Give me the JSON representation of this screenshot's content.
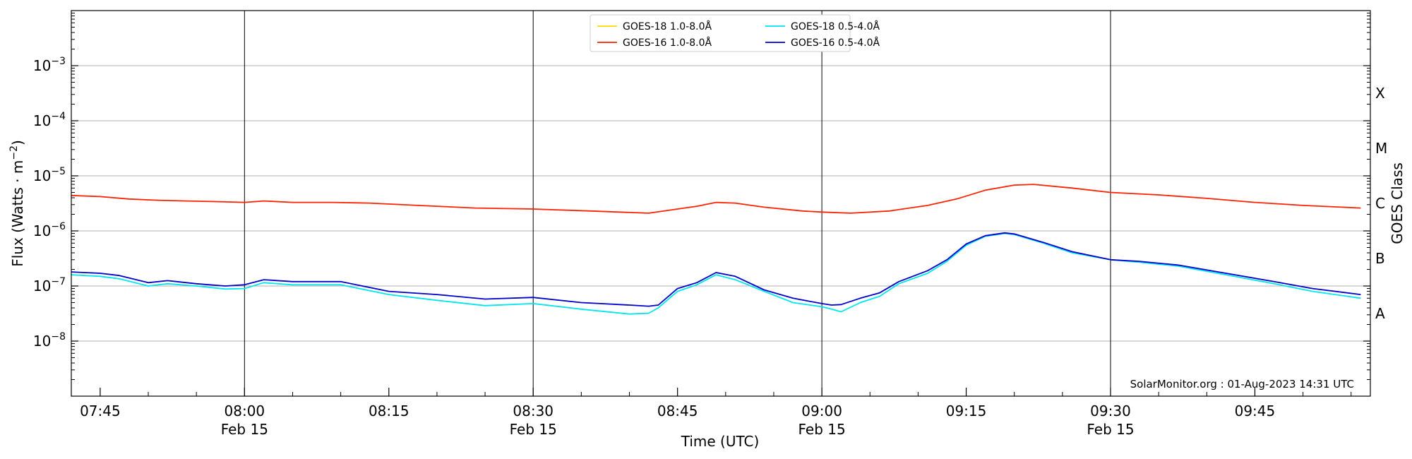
{
  "chart_data": {
    "type": "line",
    "x_unit": "minutes of 15 Feb (UTC)",
    "xlim": [
      "07:42",
      "09:57"
    ],
    "x_ticks": [
      {
        "t": "07:45",
        "label": "07:45",
        "date": ""
      },
      {
        "t": "08:00",
        "label": "08:00",
        "date": "Feb 15"
      },
      {
        "t": "08:15",
        "label": "08:15",
        "date": ""
      },
      {
        "t": "08:30",
        "label": "08:30",
        "date": "Feb 15"
      },
      {
        "t": "08:45",
        "label": "08:45",
        "date": ""
      },
      {
        "t": "09:00",
        "label": "09:00",
        "date": "Feb 15"
      },
      {
        "t": "09:15",
        "label": "09:15",
        "date": ""
      },
      {
        "t": "09:30",
        "label": "09:30",
        "date": "Feb 15"
      },
      {
        "t": "09:45",
        "label": "09:45",
        "date": ""
      }
    ],
    "xlabel": "Time (UTC)",
    "ylabel": "Flux (Watts · m",
    "ylabel_sup": "−2",
    "ylabel_close": ")",
    "y_scale": "log",
    "ylim": [
      1e-09,
      0.01
    ],
    "y_ticks": [
      {
        "value": 1e-08,
        "base": "10",
        "exp": "−8"
      },
      {
        "value": 1e-07,
        "base": "10",
        "exp": "−7"
      },
      {
        "value": 1e-06,
        "base": "10",
        "exp": "−6"
      },
      {
        "value": 1e-05,
        "base": "10",
        "exp": "−5"
      },
      {
        "value": 0.0001,
        "base": "10",
        "exp": "−4"
      },
      {
        "value": 0.001,
        "base": "10",
        "exp": "−3"
      }
    ],
    "right_axis_label": "GOES Class",
    "right_classes": [
      {
        "label": "A",
        "value": 3.16e-08
      },
      {
        "label": "B",
        "value": 3.16e-07
      },
      {
        "label": "C",
        "value": 3.16e-06
      },
      {
        "label": "M",
        "value": 3.16e-05
      },
      {
        "label": "X",
        "value": 0.000316
      }
    ],
    "grid": true,
    "vertical_lines": [
      "08:00",
      "08:30",
      "09:00",
      "09:30"
    ],
    "legend_position": "top-center",
    "credit": "SolarMonitor.org : 01-Aug-2023 14:31 UTC",
    "series": [
      {
        "name": "GOES-18 1.0-8.0Å",
        "color": "#ffd700",
        "x": [],
        "y": []
      },
      {
        "name": "GOES-16 1.0-8.0Å",
        "color": "#ff2200",
        "x": [
          "07:42",
          "07:45",
          "07:48",
          "07:51",
          "07:54",
          "07:57",
          "08:00",
          "08:02",
          "08:05",
          "08:09",
          "08:13",
          "08:18",
          "08:24",
          "08:30",
          "08:36",
          "08:42",
          "08:45",
          "08:47",
          "08:49",
          "08:51",
          "08:54",
          "08:58",
          "09:00",
          "09:03",
          "09:07",
          "09:11",
          "09:14",
          "09:17",
          "09:20",
          "09:22",
          "09:26",
          "09:30",
          "09:35",
          "09:40",
          "09:45",
          "09:50",
          "09:56"
        ],
        "y": [
          4.4e-06,
          4.2e-06,
          3.8e-06,
          3.6e-06,
          3.5e-06,
          3.4e-06,
          3.3e-06,
          3.5e-06,
          3.3e-06,
          3.3e-06,
          3.2e-06,
          2.9e-06,
          2.6e-06,
          2.5e-06,
          2.3e-06,
          2.1e-06,
          2.5e-06,
          2.8e-06,
          3.3e-06,
          3.2e-06,
          2.7e-06,
          2.3e-06,
          2.2e-06,
          2.1e-06,
          2.3e-06,
          2.9e-06,
          3.8e-06,
          5.5e-06,
          6.8e-06,
          7e-06,
          6e-06,
          5e-06,
          4.5e-06,
          3.9e-06,
          3.3e-06,
          2.9e-06,
          2.6e-06
        ]
      },
      {
        "name": "GOES-18 0.5-4.0Å",
        "color": "#00e5ee",
        "x": [
          "07:42",
          "07:45",
          "07:47",
          "07:50",
          "07:52",
          "07:55",
          "07:58",
          "08:00",
          "08:02",
          "08:05",
          "08:10",
          "08:15",
          "08:20",
          "08:25",
          "08:30",
          "08:35",
          "08:40",
          "08:42",
          "08:43",
          "08:45",
          "08:47",
          "08:49",
          "08:51",
          "08:54",
          "08:57",
          "09:00",
          "09:01",
          "09:02",
          "09:04",
          "09:06",
          "09:08",
          "09:11",
          "09:13",
          "09:15",
          "09:17",
          "09:19",
          "09:20",
          "09:23",
          "09:26",
          "09:30",
          "09:33",
          "09:37",
          "09:42",
          "09:47",
          "09:51",
          "09:56"
        ],
        "y": [
          1.6e-07,
          1.5e-07,
          1.35e-07,
          1e-07,
          1.1e-07,
          1e-07,
          8.8e-08,
          9e-08,
          1.15e-07,
          1.05e-07,
          1.05e-07,
          7e-08,
          5.5e-08,
          4.4e-08,
          4.8e-08,
          3.8e-08,
          3.1e-08,
          3.2e-08,
          4e-08,
          8e-08,
          1.05e-07,
          1.6e-07,
          1.3e-07,
          8e-08,
          5e-08,
          4.2e-08,
          3.8e-08,
          3.4e-08,
          5e-08,
          6.5e-08,
          1.1e-07,
          1.7e-07,
          2.8e-07,
          5.5e-07,
          8e-07,
          9e-07,
          8.6e-07,
          6e-07,
          4e-07,
          3e-07,
          2.7e-07,
          2.3e-07,
          1.6e-07,
          1.1e-07,
          8e-08,
          6e-08
        ]
      },
      {
        "name": "GOES-16 0.5-4.0Å",
        "color": "#0000cc",
        "x": [
          "07:42",
          "07:45",
          "07:47",
          "07:50",
          "07:52",
          "07:55",
          "07:58",
          "08:00",
          "08:02",
          "08:05",
          "08:10",
          "08:15",
          "08:20",
          "08:25",
          "08:30",
          "08:35",
          "08:40",
          "08:42",
          "08:43",
          "08:45",
          "08:47",
          "08:49",
          "08:51",
          "08:54",
          "08:57",
          "09:00",
          "09:01",
          "09:02",
          "09:04",
          "09:06",
          "09:08",
          "09:11",
          "09:13",
          "09:15",
          "09:17",
          "09:19",
          "09:20",
          "09:23",
          "09:26",
          "09:30",
          "09:33",
          "09:37",
          "09:42",
          "09:47",
          "09:51",
          "09:56"
        ],
        "y": [
          1.8e-07,
          1.7e-07,
          1.55e-07,
          1.15e-07,
          1.25e-07,
          1.1e-07,
          1e-07,
          1.05e-07,
          1.3e-07,
          1.2e-07,
          1.2e-07,
          8e-08,
          7e-08,
          5.8e-08,
          6.2e-08,
          5e-08,
          4.5e-08,
          4.3e-08,
          4.5e-08,
          9e-08,
          1.15e-07,
          1.75e-07,
          1.5e-07,
          8.5e-08,
          6e-08,
          4.8e-08,
          4.5e-08,
          4.6e-08,
          6e-08,
          7.5e-08,
          1.2e-07,
          1.9e-07,
          3e-07,
          5.8e-07,
          8.2e-07,
          9.2e-07,
          8.8e-07,
          6.2e-07,
          4.2e-07,
          3e-07,
          2.8e-07,
          2.4e-07,
          1.7e-07,
          1.2e-07,
          9e-08,
          7e-08
        ]
      }
    ]
  }
}
